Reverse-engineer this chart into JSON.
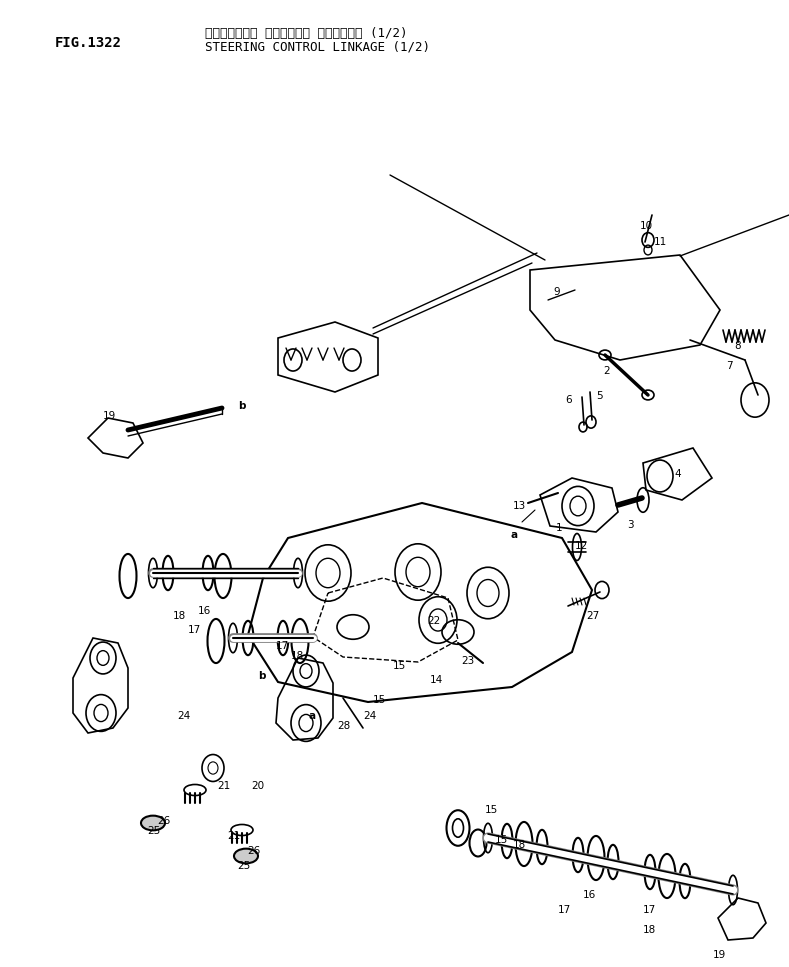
{
  "fig_number": "FIG.1322",
  "title_jp": "ステアリング・ コントロール リンケージ・ (1/2)",
  "title_en": "STEERING CONTROL LINKAGE (1/2)",
  "bg_color": "#ffffff",
  "line_color": "#000000",
  "text_color": "#000000",
  "fig_width": 789,
  "fig_height": 967,
  "dpi": 100
}
